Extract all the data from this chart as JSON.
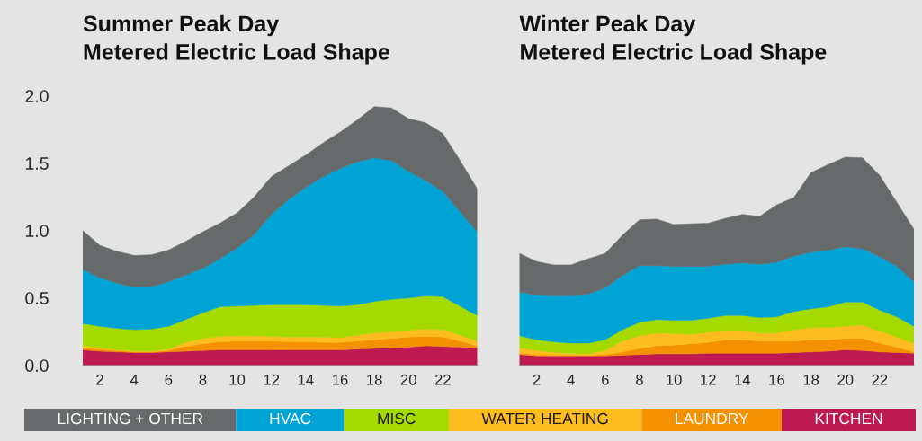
{
  "chart_data": [
    {
      "type": "area",
      "title": "Summer Peak Day\nMetered Electric Load Shape",
      "stacked": true,
      "legend": "bottom",
      "x": [
        1,
        2,
        3,
        4,
        5,
        6,
        7,
        8,
        9,
        10,
        11,
        12,
        13,
        14,
        15,
        16,
        17,
        18,
        19,
        20,
        21,
        22,
        23,
        24
      ],
      "xlim": [
        1,
        24
      ],
      "xticks": [
        2,
        4,
        6,
        8,
        10,
        12,
        14,
        16,
        18,
        20,
        22
      ],
      "ylim": [
        0,
        2.0
      ],
      "yticks": [
        {
          "value": 0,
          "label": "0.0"
        },
        {
          "value": 0.5,
          "label": "0.5"
        },
        {
          "value": 1.0,
          "label": "1.0"
        },
        {
          "value": 1.5,
          "label": "1.5"
        },
        {
          "value": 2.0,
          "label": "2.0"
        }
      ],
      "series": [
        {
          "name": "KITCHEN",
          "color": "#bc1a50",
          "values": [
            0.115,
            0.105,
            0.1,
            0.095,
            0.095,
            0.1,
            0.105,
            0.11,
            0.115,
            0.115,
            0.115,
            0.115,
            0.115,
            0.115,
            0.115,
            0.115,
            0.12,
            0.125,
            0.13,
            0.135,
            0.145,
            0.14,
            0.135,
            0.13
          ]
        },
        {
          "name": "LAUNDRY",
          "color": "#f39100",
          "values": [
            0.015,
            0.015,
            0.01,
            0.005,
            0.005,
            0.01,
            0.035,
            0.05,
            0.06,
            0.065,
            0.065,
            0.065,
            0.06,
            0.06,
            0.055,
            0.055,
            0.06,
            0.065,
            0.07,
            0.075,
            0.07,
            0.07,
            0.045,
            0.015
          ]
        },
        {
          "name": "WATER HEATING",
          "color": "#ffbc1e",
          "values": [
            0.015,
            0.01,
            0.005,
            0.005,
            0.005,
            0.01,
            0.03,
            0.04,
            0.04,
            0.04,
            0.04,
            0.035,
            0.035,
            0.035,
            0.04,
            0.035,
            0.045,
            0.05,
            0.05,
            0.05,
            0.055,
            0.055,
            0.045,
            0.035
          ]
        },
        {
          "name": "MISC",
          "color": "#a5da00",
          "values": [
            0.165,
            0.16,
            0.16,
            0.16,
            0.165,
            0.17,
            0.17,
            0.19,
            0.22,
            0.22,
            0.225,
            0.235,
            0.24,
            0.24,
            0.235,
            0.235,
            0.225,
            0.235,
            0.24,
            0.24,
            0.245,
            0.245,
            0.215,
            0.19
          ]
        },
        {
          "name": "HVAC",
          "color": "#00a4d4",
          "values": [
            0.4,
            0.36,
            0.335,
            0.315,
            0.315,
            0.33,
            0.33,
            0.33,
            0.355,
            0.43,
            0.525,
            0.67,
            0.78,
            0.87,
            0.955,
            1.02,
            1.06,
            1.065,
            1.03,
            0.94,
            0.855,
            0.78,
            0.7,
            0.62
          ]
        },
        {
          "name": "LIGHTING + OTHER",
          "color": "#676a6b",
          "values": [
            0.29,
            0.24,
            0.235,
            0.235,
            0.235,
            0.235,
            0.25,
            0.27,
            0.265,
            0.26,
            0.28,
            0.28,
            0.25,
            0.24,
            0.25,
            0.27,
            0.31,
            0.38,
            0.39,
            0.39,
            0.43,
            0.43,
            0.38,
            0.32
          ]
        }
      ]
    },
    {
      "type": "area",
      "title": "Winter Peak Day\nMetered Electric Load Shape",
      "stacked": true,
      "tick_labels": "x",
      "x": [
        1,
        2,
        3,
        4,
        5,
        6,
        7,
        8,
        9,
        10,
        11,
        12,
        13,
        14,
        15,
        16,
        17,
        18,
        19,
        20,
        21,
        22,
        23,
        24
      ],
      "xlim": [
        1,
        24
      ],
      "xticks": [
        2,
        4,
        6,
        8,
        10,
        12,
        14,
        16,
        18,
        20,
        22
      ],
      "ylim": [
        0,
        2.0
      ],
      "series": [
        {
          "color": "#bc1a50",
          "values": [
            0.08,
            0.07,
            0.07,
            0.07,
            0.07,
            0.07,
            0.075,
            0.08,
            0.085,
            0.085,
            0.085,
            0.09,
            0.09,
            0.09,
            0.09,
            0.09,
            0.095,
            0.1,
            0.105,
            0.115,
            0.11,
            0.1,
            0.095,
            0.09
          ]
        },
        {
          "color": "#f39100",
          "values": [
            0.01,
            0.01,
            0.005,
            0.005,
            0.005,
            0.01,
            0.025,
            0.045,
            0.06,
            0.065,
            0.075,
            0.08,
            0.1,
            0.1,
            0.09,
            0.09,
            0.085,
            0.09,
            0.085,
            0.085,
            0.09,
            0.065,
            0.04,
            0.01
          ]
        },
        {
          "color": "#ffbc1e",
          "values": [
            0.04,
            0.03,
            0.02,
            0.015,
            0.01,
            0.03,
            0.08,
            0.095,
            0.095,
            0.085,
            0.07,
            0.075,
            0.07,
            0.07,
            0.06,
            0.06,
            0.085,
            0.09,
            0.09,
            0.09,
            0.1,
            0.09,
            0.075,
            0.065
          ]
        },
        {
          "color": "#a5da00",
          "values": [
            0.09,
            0.08,
            0.08,
            0.075,
            0.08,
            0.08,
            0.085,
            0.1,
            0.1,
            0.1,
            0.105,
            0.105,
            0.11,
            0.11,
            0.115,
            0.12,
            0.135,
            0.14,
            0.155,
            0.18,
            0.17,
            0.155,
            0.15,
            0.125
          ]
        },
        {
          "color": "#00a4d4",
          "values": [
            0.325,
            0.33,
            0.34,
            0.35,
            0.365,
            0.385,
            0.4,
            0.42,
            0.4,
            0.4,
            0.4,
            0.385,
            0.38,
            0.39,
            0.395,
            0.405,
            0.41,
            0.42,
            0.42,
            0.41,
            0.395,
            0.395,
            0.375,
            0.33
          ]
        },
        {
          "color": "#676a6b",
          "values": [
            0.285,
            0.25,
            0.23,
            0.23,
            0.26,
            0.255,
            0.3,
            0.34,
            0.345,
            0.31,
            0.315,
            0.32,
            0.34,
            0.36,
            0.355,
            0.425,
            0.435,
            0.59,
            0.635,
            0.665,
            0.675,
            0.605,
            0.475,
            0.39
          ]
        }
      ]
    }
  ]
}
